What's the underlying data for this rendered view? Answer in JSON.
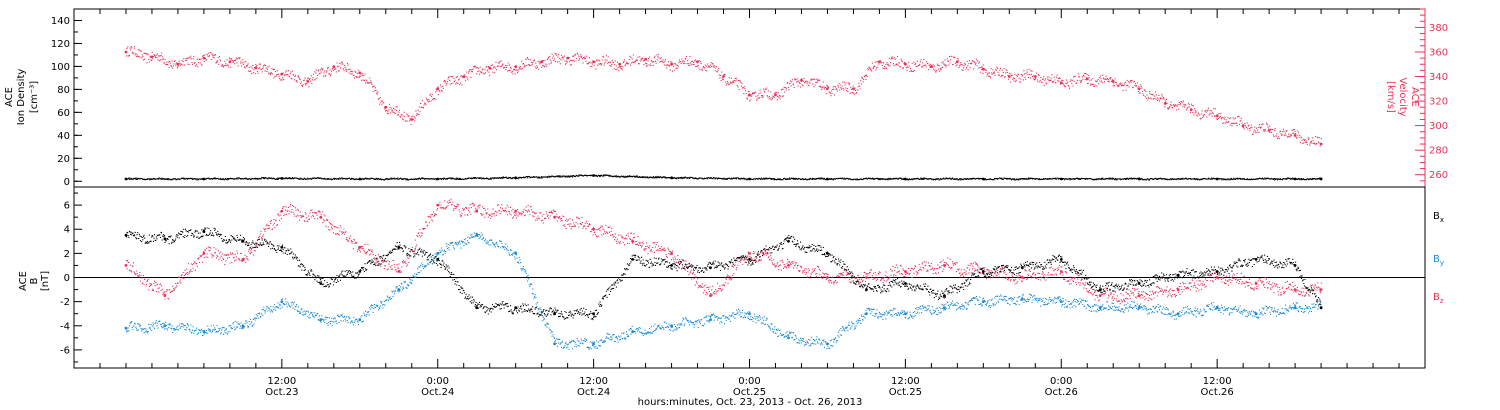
{
  "chart_data": [
    {
      "type": "scatter",
      "panel": "top",
      "ylabel_left": [
        "ACE",
        "Ion Density",
        "[cm⁻³]"
      ],
      "ylabel_right": [
        "ACE",
        "Velocity",
        "[km/s]"
      ],
      "ylim_left": [
        -5,
        150
      ],
      "ylim_right": [
        250,
        395
      ],
      "yticks_left": [
        0,
        20,
        40,
        60,
        80,
        100,
        120,
        140
      ],
      "yticks_right": [
        260,
        280,
        300,
        320,
        340,
        360,
        380
      ],
      "grid": false,
      "series": [
        {
          "axis": "right",
          "color": "#e8325a",
          "x": [
            0,
            2,
            4,
            6,
            8,
            10,
            12,
            14,
            16,
            18,
            20,
            22,
            24,
            26,
            28,
            30,
            32,
            34,
            36,
            38,
            40,
            42,
            44,
            46,
            48,
            50,
            52,
            54,
            56,
            58,
            60,
            62,
            64,
            66,
            68,
            70,
            72,
            74,
            76,
            78,
            80,
            82,
            84,
            86,
            88,
            90,
            92
          ],
          "values": [
            360,
            356,
            350,
            355,
            352,
            347,
            342,
            336,
            348,
            343,
            315,
            305,
            330,
            340,
            347,
            348,
            352,
            355,
            352,
            350,
            354,
            350,
            352,
            340,
            325,
            325,
            337,
            330,
            330,
            352,
            350,
            348,
            352,
            346,
            340,
            340,
            335,
            338,
            336,
            330,
            318,
            313,
            308,
            300,
            296,
            292,
            285
          ]
        },
        {
          "axis": "left",
          "color": "#000000",
          "x": [
            0,
            6,
            12,
            18,
            24,
            30,
            36,
            42,
            48,
            54,
            60,
            66,
            72,
            78,
            84,
            90,
            92
          ],
          "values": [
            2,
            2,
            2.5,
            2,
            2,
            3,
            5,
            3,
            2,
            2,
            2,
            2,
            2,
            2,
            2,
            2,
            2
          ]
        }
      ]
    },
    {
      "type": "scatter",
      "panel": "bottom",
      "ylabel_left": [
        "ACE",
        "B",
        "[nT]"
      ],
      "ylim": [
        -7.5,
        7.5
      ],
      "yticks": [
        -6,
        -4,
        -2,
        0,
        2,
        4,
        6
      ],
      "legend": "right",
      "grid": false,
      "series": [
        {
          "name": "B",
          "subscript": "x",
          "color": "#000000",
          "x": [
            0,
            3,
            6,
            9,
            12,
            15,
            18,
            21,
            24,
            27,
            30,
            33,
            36,
            39,
            42,
            45,
            48,
            51,
            54,
            57,
            60,
            63,
            66,
            69,
            72,
            75,
            78,
            81,
            84,
            87,
            90,
            92
          ],
          "values": [
            3.5,
            3.2,
            3.8,
            3.0,
            2.5,
            -0.5,
            0.5,
            2.5,
            1.5,
            -2.5,
            -2.5,
            -3,
            -3,
            1.5,
            1.0,
            0.8,
            1.5,
            3.0,
            2.0,
            -1.0,
            -0.5,
            -1.5,
            0.5,
            0.8,
            1.5,
            -1.0,
            -0.5,
            0.2,
            0.5,
            1.5,
            1.0,
            -2.5
          ]
        },
        {
          "name": "B",
          "subscript": "y",
          "color": "#1a8ad4",
          "x": [
            0,
            3,
            6,
            9,
            12,
            15,
            18,
            21,
            24,
            27,
            30,
            33,
            36,
            39,
            42,
            45,
            48,
            51,
            54,
            57,
            60,
            63,
            66,
            69,
            72,
            75,
            78,
            81,
            84,
            87,
            90,
            92
          ],
          "values": [
            -4.2,
            -4.0,
            -4.5,
            -4.0,
            -2.0,
            -3.5,
            -3.5,
            -1.0,
            2.0,
            3.5,
            2.0,
            -5.5,
            -5.5,
            -4.5,
            -4.0,
            -3.5,
            -3.0,
            -5.0,
            -5.5,
            -3.0,
            -3.0,
            -2.5,
            -2.0,
            -1.8,
            -2.0,
            -2.5,
            -2.5,
            -3.0,
            -2.5,
            -3.0,
            -2.5,
            -2.5
          ]
        },
        {
          "name": "B",
          "subscript": "z",
          "color": "#e8325a",
          "x": [
            0,
            3,
            6,
            9,
            12,
            15,
            18,
            21,
            24,
            27,
            30,
            33,
            36,
            39,
            42,
            45,
            48,
            51,
            54,
            57,
            60,
            63,
            66,
            69,
            72,
            75,
            78,
            81,
            84,
            87,
            90,
            92
          ],
          "values": [
            1.0,
            -1.5,
            2.0,
            1.5,
            5.5,
            5.0,
            2.5,
            0.5,
            6.0,
            5.5,
            5.5,
            5.0,
            4.0,
            3.0,
            2.0,
            -1.5,
            2.0,
            1.0,
            0.0,
            0.0,
            0.5,
            1.0,
            0.5,
            0.0,
            0.5,
            -1.5,
            -1.5,
            -1.0,
            0.0,
            -0.5,
            -1.0,
            -1.0
          ]
        }
      ]
    }
  ],
  "x_axis": {
    "xlim": [
      -4,
      100
    ],
    "major_ticks": [
      {
        "x": 12,
        "line1": "12:00",
        "line2": "Oct.23"
      },
      {
        "x": 24,
        "line1": "0:00",
        "line2": "Oct.24"
      },
      {
        "x": 36,
        "line1": "12:00",
        "line2": "Oct.24"
      },
      {
        "x": 48,
        "line1": "0:00",
        "line2": "Oct.25"
      },
      {
        "x": 60,
        "line1": "12:00",
        "line2": "Oct.25"
      },
      {
        "x": 72,
        "line1": "0:00",
        "line2": "Oct.26"
      },
      {
        "x": 84,
        "line1": "12:00",
        "line2": "Oct.26"
      }
    ],
    "minor_step": 2,
    "xlabel": "hours:minutes, Oct. 23, 2013 - Oct. 26, 2013"
  },
  "colors": {
    "velocity": "#e8325a",
    "density": "#000000",
    "bx": "#000000",
    "by": "#1a8ad4",
    "bz": "#e8325a",
    "axis": "#000000"
  }
}
